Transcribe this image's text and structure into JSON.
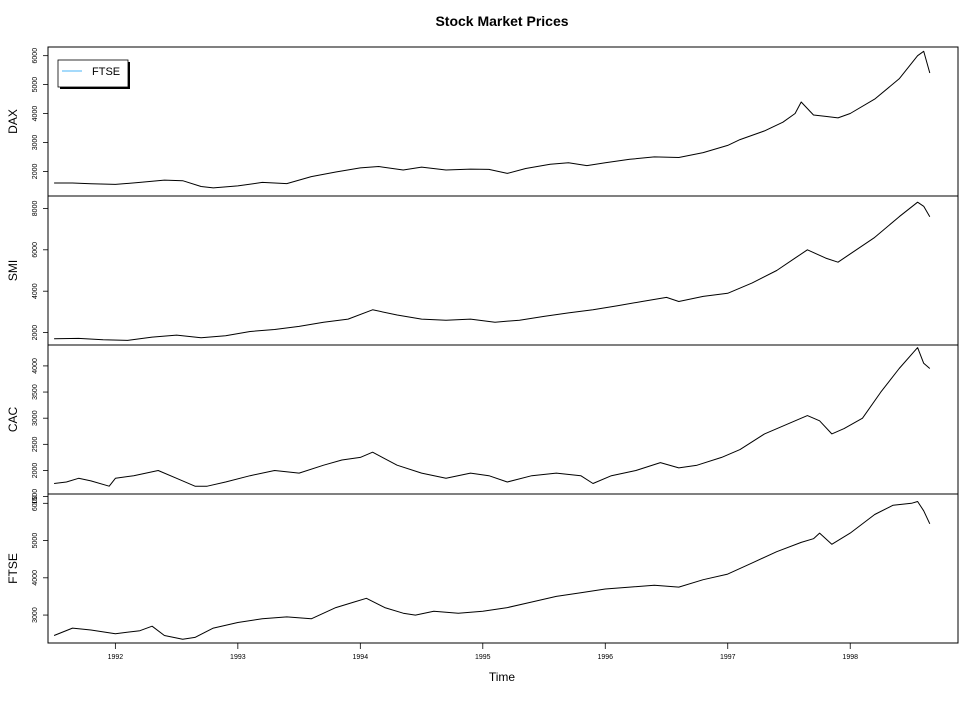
{
  "chart_data": {
    "type": "line",
    "title": "Stock Market Prices",
    "xlabel": "Time",
    "x_ticks": [
      1992,
      1993,
      1994,
      1995,
      1996,
      1997,
      1998
    ],
    "xlim": [
      1991.45,
      1998.88
    ],
    "line_color": "#000000",
    "legend": {
      "placement": "top-left",
      "entries": [
        {
          "label": "FTSE",
          "color": "#87cefa"
        }
      ]
    },
    "panels": [
      {
        "name": "DAX",
        "ylabel": "DAX",
        "ylim": [
          1150,
          6300
        ],
        "y_ticks": [
          2000,
          3000,
          4000,
          5000,
          6000
        ],
        "x": [
          1991.5,
          1991.65,
          1991.8,
          1992.0,
          1992.2,
          1992.4,
          1992.55,
          1992.7,
          1992.8,
          1993.0,
          1993.2,
          1993.4,
          1993.6,
          1993.8,
          1994.0,
          1994.15,
          1994.35,
          1994.5,
          1994.7,
          1994.9,
          1995.05,
          1995.2,
          1995.35,
          1995.55,
          1995.7,
          1995.85,
          1996.0,
          1996.2,
          1996.4,
          1996.6,
          1996.8,
          1997.0,
          1997.1,
          1997.3,
          1997.45,
          1997.55,
          1997.6,
          1997.7,
          1997.8,
          1997.9,
          1998.0,
          1998.2,
          1998.4,
          1998.55,
          1998.6,
          1998.65
        ],
        "values": [
          1600,
          1600,
          1570,
          1550,
          1620,
          1700,
          1680,
          1480,
          1430,
          1500,
          1620,
          1580,
          1820,
          1980,
          2120,
          2170,
          2050,
          2150,
          2050,
          2080,
          2070,
          1930,
          2100,
          2250,
          2300,
          2200,
          2300,
          2420,
          2500,
          2480,
          2650,
          2900,
          3100,
          3400,
          3700,
          4000,
          4400,
          3950,
          3900,
          3850,
          4000,
          4500,
          5200,
          6000,
          6150,
          5400
        ]
      },
      {
        "name": "SMI",
        "ylabel": "SMI",
        "ylim": [
          1400,
          8600
        ],
        "y_ticks": [
          2000,
          4000,
          6000,
          8000
        ],
        "x": [
          1991.5,
          1991.7,
          1991.9,
          1992.1,
          1992.3,
          1992.5,
          1992.7,
          1992.9,
          1993.1,
          1993.3,
          1993.5,
          1993.7,
          1993.9,
          1994.1,
          1994.3,
          1994.5,
          1994.7,
          1994.9,
          1995.1,
          1995.3,
          1995.5,
          1995.7,
          1995.9,
          1996.1,
          1996.3,
          1996.5,
          1996.6,
          1996.8,
          1997.0,
          1997.2,
          1997.4,
          1997.55,
          1997.65,
          1997.8,
          1997.9,
          1998.0,
          1998.2,
          1998.4,
          1998.55,
          1998.6,
          1998.65
        ],
        "values": [
          1700,
          1720,
          1650,
          1620,
          1780,
          1880,
          1750,
          1850,
          2050,
          2150,
          2300,
          2500,
          2650,
          3100,
          2850,
          2650,
          2600,
          2650,
          2500,
          2600,
          2780,
          2950,
          3100,
          3300,
          3500,
          3700,
          3500,
          3750,
          3900,
          4400,
          5000,
          5600,
          6000,
          5600,
          5400,
          5800,
          6600,
          7600,
          8300,
          8100,
          7600
        ]
      },
      {
        "name": "CAC",
        "ylabel": "CAC",
        "ylim": [
          1550,
          4400
        ],
        "y_ticks": [
          1500,
          2000,
          2500,
          3000,
          3500,
          4000
        ],
        "x": [
          1991.5,
          1991.6,
          1991.7,
          1991.8,
          1991.95,
          1992.0,
          1992.15,
          1992.35,
          1992.5,
          1992.65,
          1992.75,
          1992.9,
          1993.1,
          1993.3,
          1993.5,
          1993.7,
          1993.85,
          1994.0,
          1994.1,
          1994.3,
          1994.5,
          1994.7,
          1994.9,
          1995.05,
          1995.2,
          1995.4,
          1995.6,
          1995.8,
          1995.9,
          1996.05,
          1996.25,
          1996.45,
          1996.6,
          1996.75,
          1996.95,
          1997.1,
          1997.3,
          1997.5,
          1997.65,
          1997.75,
          1997.85,
          1997.95,
          1998.1,
          1998.25,
          1998.4,
          1998.55,
          1998.6,
          1998.65
        ],
        "values": [
          1750,
          1780,
          1850,
          1800,
          1700,
          1850,
          1900,
          2000,
          1850,
          1700,
          1700,
          1780,
          1900,
          2000,
          1950,
          2100,
          2200,
          2250,
          2350,
          2100,
          1950,
          1850,
          1950,
          1900,
          1780,
          1900,
          1950,
          1900,
          1750,
          1900,
          2000,
          2150,
          2050,
          2100,
          2250,
          2400,
          2700,
          2900,
          3050,
          2950,
          2700,
          2800,
          3000,
          3500,
          3950,
          4350,
          4050,
          3950
        ]
      },
      {
        "name": "FTSE",
        "ylabel": "FTSE",
        "ylim": [
          2250,
          6250
        ],
        "y_ticks": [
          3000,
          4000,
          5000,
          6000
        ],
        "x": [
          1991.5,
          1991.65,
          1991.8,
          1992.0,
          1992.2,
          1992.3,
          1992.4,
          1992.55,
          1992.65,
          1992.8,
          1993.0,
          1993.2,
          1993.4,
          1993.6,
          1993.8,
          1993.95,
          1994.05,
          1994.2,
          1994.35,
          1994.45,
          1994.6,
          1994.8,
          1995.0,
          1995.2,
          1995.4,
          1995.6,
          1995.8,
          1996.0,
          1996.2,
          1996.4,
          1996.6,
          1996.8,
          1997.0,
          1997.2,
          1997.4,
          1997.6,
          1997.7,
          1997.75,
          1997.85,
          1998.0,
          1998.2,
          1998.35,
          1998.5,
          1998.55,
          1998.6,
          1998.65
        ],
        "values": [
          2450,
          2650,
          2600,
          2500,
          2580,
          2700,
          2450,
          2350,
          2400,
          2650,
          2800,
          2900,
          2950,
          2900,
          3200,
          3350,
          3450,
          3200,
          3050,
          3000,
          3100,
          3050,
          3100,
          3200,
          3350,
          3500,
          3600,
          3700,
          3750,
          3800,
          3750,
          3950,
          4100,
          4400,
          4700,
          4950,
          5050,
          5200,
          4900,
          5200,
          5700,
          5950,
          6000,
          6050,
          5800,
          5450
        ]
      }
    ]
  }
}
